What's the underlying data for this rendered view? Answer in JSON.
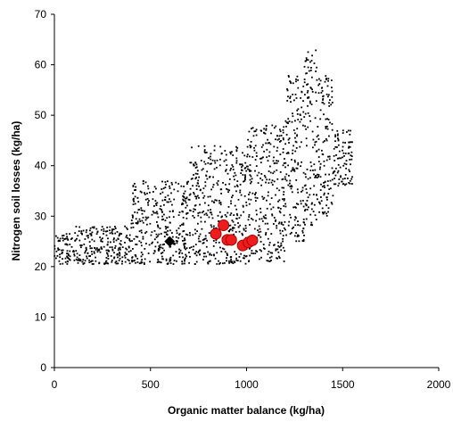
{
  "chart_data": {
    "type": "scatter",
    "title": "",
    "xlabel": "Organic matter balance (kg/ha)",
    "ylabel": "Nitrogen soil losses (kg/ha)",
    "xlim": [
      0,
      2000
    ],
    "ylim": [
      0,
      70
    ],
    "xticks": [
      0,
      500,
      1000,
      1500,
      2000
    ],
    "yticks": [
      0,
      10,
      20,
      30,
      40,
      50,
      60,
      70
    ],
    "grid": false,
    "legend": "none",
    "series": [
      {
        "marker": "small-dot",
        "color": "#000000",
        "cloud": {
          "count": 1800,
          "regions": [
            {
              "x_range": [
                0,
                100
              ],
              "y_range": [
                20.5,
                26.5
              ]
            },
            {
              "x_range": [
                100,
                400
              ],
              "y_range": [
                20.5,
                28
              ]
            },
            {
              "x_range": [
                400,
                700
              ],
              "y_range": [
                20.5,
                37.5
              ]
            },
            {
              "x_range": [
                700,
                1000
              ],
              "y_range": [
                20.5,
                44
              ]
            },
            {
              "x_range": [
                1000,
                1200
              ],
              "y_range": [
                21,
                48
              ]
            },
            {
              "x_range": [
                1200,
                1300
              ],
              "y_range": [
                25,
                58
              ]
            },
            {
              "x_range": [
                1300,
                1370
              ],
              "y_range": [
                28,
                63
              ]
            },
            {
              "x_range": [
                1370,
                1450
              ],
              "y_range": [
                30,
                58
              ]
            },
            {
              "x_range": [
                1450,
                1550
              ],
              "y_range": [
                36,
                47
              ]
            }
          ]
        }
      },
      {
        "marker": "diamond",
        "color": "#000000",
        "x": [
          600
        ],
        "y": [
          25
        ]
      },
      {
        "marker": "circle",
        "color": "#ee1c1c",
        "stroke": "#b00000",
        "x": [
          840,
          880,
          900,
          920,
          980,
          1010,
          1030
        ],
        "y": [
          26.5,
          28.2,
          25.3,
          25.3,
          24.2,
          24.8,
          25.2
        ]
      }
    ]
  }
}
